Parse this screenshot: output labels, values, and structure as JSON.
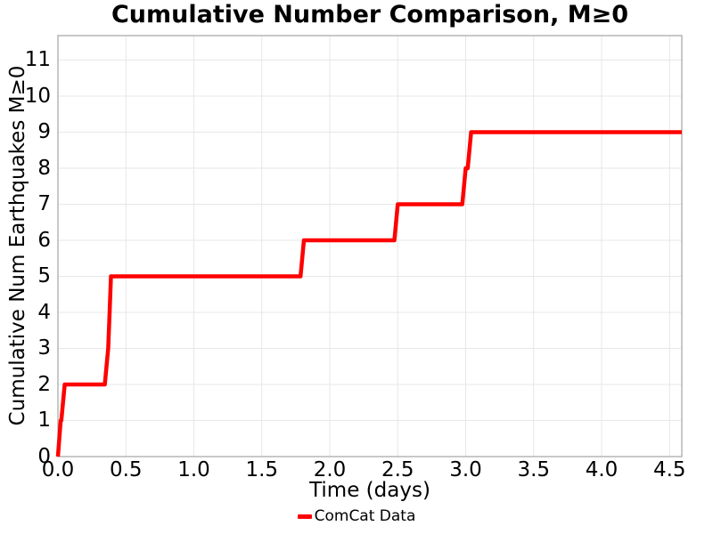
{
  "chart_data": {
    "type": "line",
    "subtype": "cumulative-step",
    "title": "Cumulative Number Comparison, M≥0",
    "xlabel": "Time (days)",
    "ylabel": "Cumulative Num Earthquakes M≥0",
    "xlim": [
      0,
      4.59
    ],
    "ylim": [
      0,
      11.68
    ],
    "grid": true,
    "xticks": {
      "values": [
        0,
        0.5,
        1.0,
        1.5,
        2.0,
        2.5,
        3.0,
        3.5,
        4.0,
        4.5
      ],
      "labels": [
        "0.0",
        "0.5",
        "1.0",
        "1.5",
        "2.0",
        "2.5",
        "3.0",
        "3.5",
        "4.0",
        "4.5"
      ]
    },
    "yticks": {
      "values": [
        0,
        1,
        2,
        3,
        4,
        5,
        6,
        7,
        8,
        9,
        10,
        11
      ],
      "labels": [
        "0",
        "1",
        "2",
        "3",
        "4",
        "5",
        "6",
        "7",
        "8",
        "9",
        "10",
        "11"
      ]
    },
    "series": [
      {
        "name": "ComCat Data",
        "color": "#ff0000",
        "line_width": 4.5,
        "start": [
          0,
          0
        ],
        "events": [
          [
            0.02,
            1
          ],
          [
            0.05,
            2
          ],
          [
            0.37,
            3
          ],
          [
            0.38,
            4
          ],
          [
            0.39,
            5
          ],
          [
            1.81,
            6
          ],
          [
            2.5,
            7
          ],
          [
            3.0,
            8
          ],
          [
            3.04,
            9
          ]
        ],
        "end_x": 4.59,
        "rise_dx": 0.025
      }
    ],
    "legend": {
      "position": "bottom-center",
      "entries": [
        {
          "label": "ComCat Data",
          "color": "#ff0000"
        }
      ]
    },
    "colors": {
      "grid": "#e7e7e7",
      "spine": "#ababab",
      "text": "#000000",
      "background": "#ffffff"
    }
  }
}
